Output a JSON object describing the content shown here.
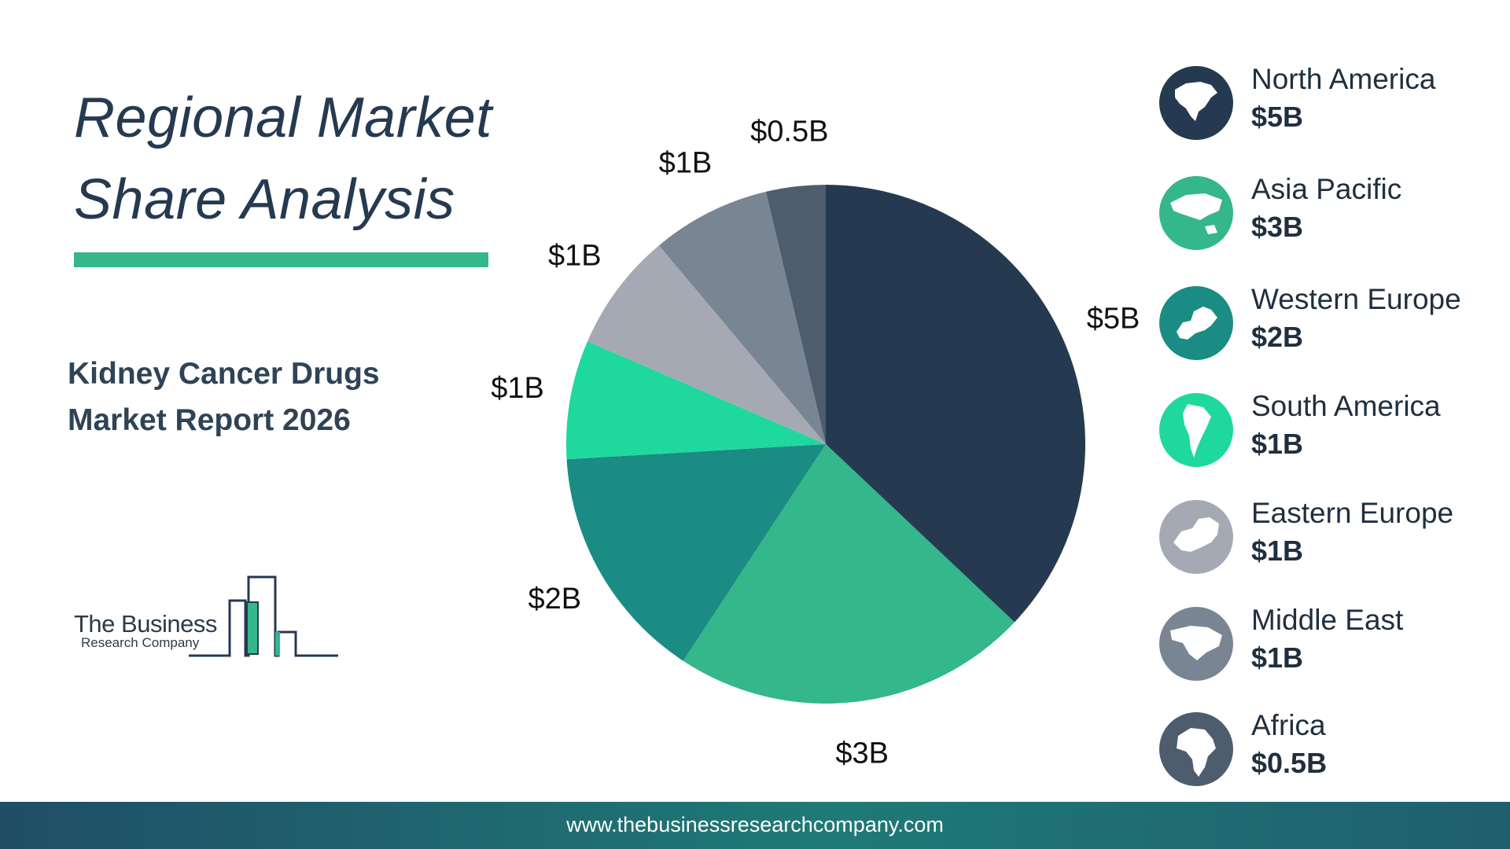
{
  "title_line1": "Regional Market",
  "title_line2": "Share Analysis",
  "subtitle_line1": "Kidney Cancer Drugs",
  "subtitle_line2": "Market Report 2026",
  "logo": {
    "line1": "The Business",
    "line2": "Research Company"
  },
  "footer_url": "www.thebusinessresearchcompany.com",
  "colors": {
    "title": "#253a50",
    "accent": "#34b78a",
    "north_america": "#253a50",
    "asia_pacific": "#34b78a",
    "western_europe": "#1b8c84",
    "south_america": "#1fd89e",
    "eastern_europe": "#a5a9b3",
    "middle_east": "#7a8593",
    "africa": "#4e5d6d"
  },
  "legend": [
    {
      "name": "North America",
      "value": "$5B",
      "color": "#253a50",
      "icon": "north-america-map-icon"
    },
    {
      "name": "Asia Pacific",
      "value": "$3B",
      "color": "#34b78a",
      "icon": "asia-pacific-map-icon"
    },
    {
      "name": "Western Europe",
      "value": "$2B",
      "color": "#1b8c84",
      "icon": "western-europe-map-icon"
    },
    {
      "name": "South America",
      "value": "$1B",
      "color": "#1fd89e",
      "icon": "south-america-map-icon"
    },
    {
      "name": "Eastern Europe",
      "value": "$1B",
      "color": "#a5a9b3",
      "icon": "eastern-europe-map-icon"
    },
    {
      "name": "Middle East",
      "value": "$1B",
      "color": "#7a8593",
      "icon": "middle-east-map-icon"
    },
    {
      "name": "Africa",
      "value": "$0.5B",
      "color": "#4e5d6d",
      "icon": "africa-map-icon"
    }
  ],
  "chart_data": {
    "type": "pie",
    "title": "",
    "categories": [
      "North America",
      "Asia Pacific",
      "Western Europe",
      "South America",
      "Eastern Europe",
      "Middle East",
      "Africa"
    ],
    "values": [
      5,
      3,
      2,
      1,
      1,
      1,
      0.5
    ],
    "labels": [
      "$5B",
      "$3B",
      "$2B",
      "$1B",
      "$1B",
      "$1B",
      "$0.5B"
    ],
    "colors": [
      "#253a50",
      "#34b78a",
      "#1b8c84",
      "#1fd89e",
      "#a5a9b3",
      "#7a8593",
      "#4e5d6d"
    ],
    "start": "top",
    "direction": "clockwise",
    "legend_position": "right"
  }
}
